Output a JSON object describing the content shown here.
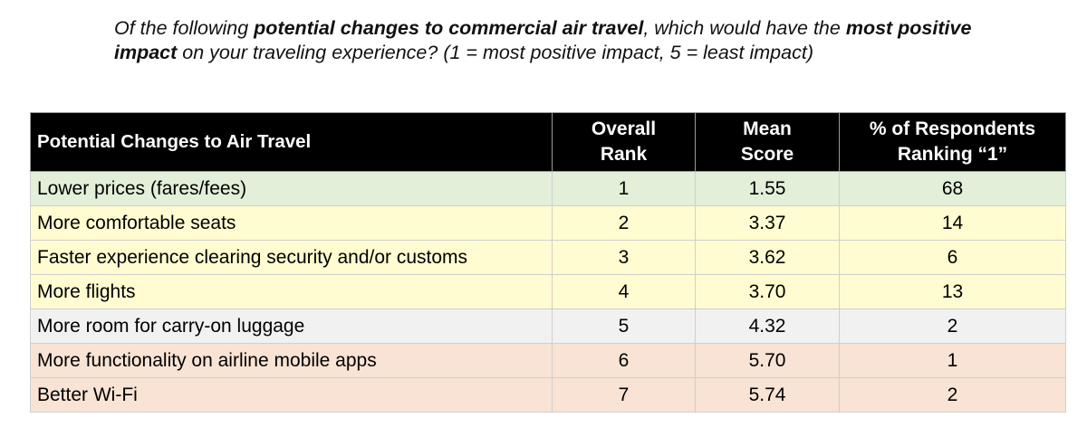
{
  "question": {
    "p1": "Of the following ",
    "b1": "potential changes to commercial air travel",
    "p2": ", which would have the ",
    "b2": "most positive impact",
    "p3": " on your traveling experience? (1 = most positive impact, 5 = least impact)"
  },
  "table": {
    "headers": {
      "change": "Potential Changes to Air Travel",
      "rank_line1": "Overall",
      "rank_line2": "Rank",
      "mean_line1": "Mean",
      "mean_line2": "Score",
      "pct_line1": "% of Respondents",
      "pct_line2": "Ranking “1”"
    },
    "rows": [
      {
        "change": "Lower prices (fares/fees)",
        "rank": "1",
        "mean": "1.55",
        "pct": "68",
        "color": "#e3efd9"
      },
      {
        "change": "More comfortable seats",
        "rank": "2",
        "mean": "3.37",
        "pct": "14",
        "color": "#fefcd0"
      },
      {
        "change": "Faster experience clearing security and/or customs",
        "rank": "3",
        "mean": "3.62",
        "pct": "6",
        "color": "#fefcd0"
      },
      {
        "change": "More flights",
        "rank": "4",
        "mean": "3.70",
        "pct": "13",
        "color": "#fefcd0"
      },
      {
        "change": "More room for carry-on luggage",
        "rank": "5",
        "mean": "4.32",
        "pct": "2",
        "color": "#f1f1f1"
      },
      {
        "change": "More functionality on airline mobile apps",
        "rank": "6",
        "mean": "5.70",
        "pct": "1",
        "color": "#f8e3d4"
      },
      {
        "change": "Better Wi-Fi",
        "rank": "7",
        "mean": "5.74",
        "pct": "2",
        "color": "#f8e3d4"
      }
    ]
  }
}
